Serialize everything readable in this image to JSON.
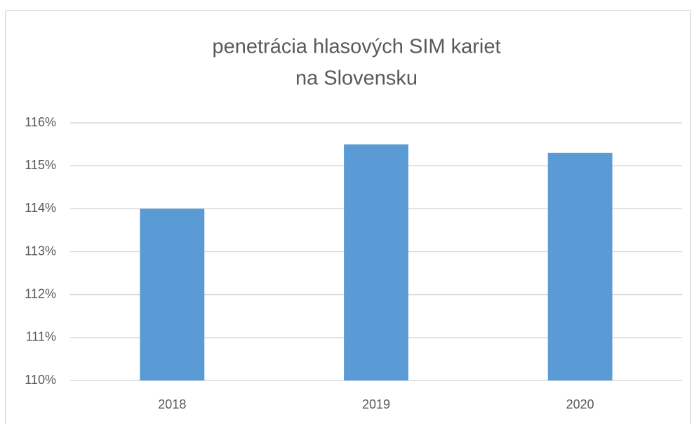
{
  "chart_data": {
    "type": "bar",
    "title": [
      "penetrácia hlasových SIM kariet",
      "na Slovensku"
    ],
    "categories": [
      "2018",
      "2019",
      "2020"
    ],
    "values": [
      114.0,
      115.5,
      115.3
    ],
    "color": "#5b9bd5",
    "ylim": [
      110,
      116
    ],
    "yticks": [
      {
        "value": 110,
        "label": "110%"
      },
      {
        "value": 111,
        "label": "111%"
      },
      {
        "value": 112,
        "label": "112%"
      },
      {
        "value": 113,
        "label": "113%"
      },
      {
        "value": 114,
        "label": "114%"
      },
      {
        "value": 115,
        "label": "115%"
      },
      {
        "value": 116,
        "label": "116%"
      }
    ],
    "grid": true
  }
}
